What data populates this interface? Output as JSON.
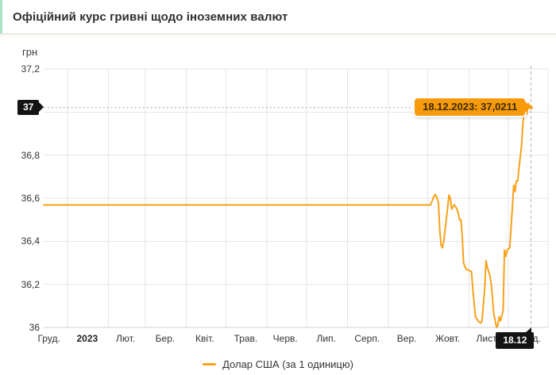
{
  "header": {
    "title": "Офіційний курс гривні щодо іноземних валют"
  },
  "colors": {
    "series": "#F9A11B",
    "tooltip_bg": "#F79A0B",
    "crosshair_badge_bg": "#141414",
    "title_accent": "#a9e5c5",
    "gridline": "#e6e6e6",
    "axis_line": "#cfcfcf",
    "crosshair_line": "#9e9e9e"
  },
  "chart_data": {
    "type": "line",
    "title": "Офіційний курс гривні щодо іноземних валют",
    "ylabel": "грн",
    "xlabel": "",
    "grid": true,
    "legend_position": "bottom",
    "ylim": [
      36,
      37.2
    ],
    "y_tick_values": [
      37.2,
      37.0,
      36.8,
      36.6,
      36.4,
      36.2,
      36.0
    ],
    "y_tick_labels": [
      "37,2",
      "37",
      "36,8",
      "36,6",
      "36,4",
      "36,2",
      "36"
    ],
    "x_range": [
      "2022-12-14",
      "2023-12-31"
    ],
    "x_tick_labels": [
      "Груд.",
      "2023",
      "Лют.",
      "Бер.",
      "Квіт.",
      "Трав.",
      "Черв.",
      "Лип.",
      "Серп.",
      "Вер.",
      "Жовт.",
      "Лист.",
      "Груд."
    ],
    "x_label_dates": [
      "2022-12-18",
      "2023-01-16",
      "2023-02-14",
      "2023-03-16",
      "2023-04-15",
      "2023-05-16",
      "2023-06-15",
      "2023-07-16",
      "2023-08-16",
      "2023-09-15",
      "2023-10-16",
      "2023-11-15",
      "2023-12-17"
    ],
    "series": [
      {
        "name": "Долар США (за 1 одиницю)",
        "color": "#F9A11B",
        "points": [
          [
            "2022-12-14",
            36.5686
          ],
          [
            "2023-10-03",
            36.5686
          ],
          [
            "2023-10-05",
            36.6
          ],
          [
            "2023-10-06",
            36.615
          ],
          [
            "2023-10-07",
            36.615
          ],
          [
            "2023-10-09",
            36.58
          ],
          [
            "2023-10-10",
            36.45
          ],
          [
            "2023-10-11",
            36.38
          ],
          [
            "2023-10-12",
            36.37
          ],
          [
            "2023-10-13",
            36.4
          ],
          [
            "2023-10-16",
            36.56
          ],
          [
            "2023-10-17",
            36.615
          ],
          [
            "2023-10-18",
            36.6
          ],
          [
            "2023-10-19",
            36.55
          ],
          [
            "2023-10-20",
            36.56
          ],
          [
            "2023-10-21",
            36.57
          ],
          [
            "2023-10-23",
            36.55
          ],
          [
            "2023-10-24",
            36.53
          ],
          [
            "2023-10-25",
            36.5
          ],
          [
            "2023-10-26",
            36.5
          ],
          [
            "2023-10-27",
            36.42
          ],
          [
            "2023-10-28",
            36.3
          ],
          [
            "2023-10-30",
            36.27
          ],
          [
            "2023-11-03",
            36.26
          ],
          [
            "2023-11-04",
            36.18
          ],
          [
            "2023-11-06",
            36.05
          ],
          [
            "2023-11-08",
            36.03
          ],
          [
            "2023-11-10",
            36.02
          ],
          [
            "2023-11-11",
            36.03
          ],
          [
            "2023-11-13",
            36.18
          ],
          [
            "2023-11-14",
            36.31
          ],
          [
            "2023-11-15",
            36.28
          ],
          [
            "2023-11-16",
            36.26
          ],
          [
            "2023-11-17",
            36.24
          ],
          [
            "2023-11-18",
            36.2
          ],
          [
            "2023-11-20",
            36.06
          ],
          [
            "2023-11-21",
            36.03
          ],
          [
            "2023-11-22",
            36.0
          ],
          [
            "2023-11-23",
            36.01
          ],
          [
            "2023-11-24",
            36.05
          ],
          [
            "2023-11-25",
            36.03
          ],
          [
            "2023-11-27",
            36.08
          ],
          [
            "2023-11-28",
            36.36
          ],
          [
            "2023-11-29",
            36.33
          ],
          [
            "2023-11-30",
            36.36
          ],
          [
            "2023-12-02",
            36.37
          ],
          [
            "2023-12-04",
            36.56
          ],
          [
            "2023-12-05",
            36.66
          ],
          [
            "2023-12-06",
            36.63
          ],
          [
            "2023-12-07",
            36.68
          ],
          [
            "2023-12-08",
            36.68
          ],
          [
            "2023-12-09",
            36.74
          ],
          [
            "2023-12-11",
            36.85
          ],
          [
            "2023-12-12",
            36.95
          ],
          [
            "2023-12-13",
            37.0
          ],
          [
            "2023-12-14",
            37.03
          ],
          [
            "2023-12-15",
            36.99
          ],
          [
            "2023-12-16",
            37.04
          ],
          [
            "2023-12-18",
            37.0211
          ]
        ]
      }
    ],
    "selected_point": {
      "date": "2023-12-18",
      "value": 37.0211,
      "tooltip": "18.12.2023: 37,0211",
      "x_axis_badge": "18.12",
      "y_axis_badge": "37"
    }
  }
}
